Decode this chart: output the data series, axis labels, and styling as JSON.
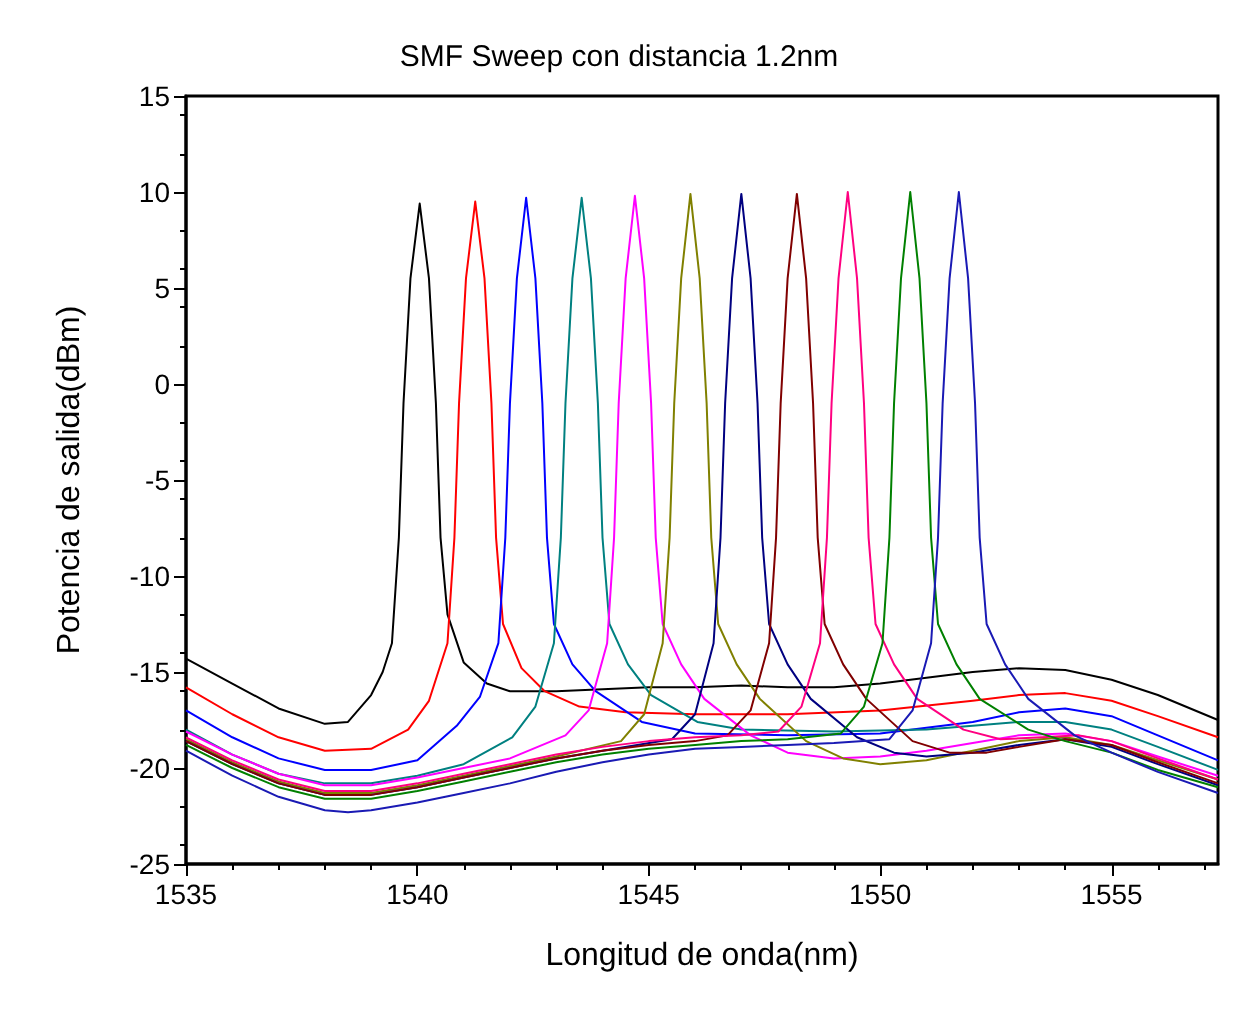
{
  "chart_data": {
    "type": "line",
    "title": "SMF Sweep con distancia 1.2nm",
    "xlabel": "Longitud de onda(nm)",
    "ylabel": "Potencia de salida(dBm)",
    "xlim": [
      1535,
      1557.3
    ],
    "xticks": [
      1535,
      1540,
      1545,
      1550,
      1555
    ],
    "ylim": [
      -25,
      15
    ],
    "yticks": [
      -25,
      -20,
      -15,
      -10,
      -5,
      0,
      5,
      10,
      15
    ],
    "grid": false,
    "marker": "none",
    "line_style": "solid",
    "series": [
      {
        "color": "#000000",
        "x": [
          1535,
          1536,
          1537,
          1538,
          1538.5,
          1539,
          1539.25,
          1539.45,
          1539.6,
          1539.7,
          1539.85,
          1540.05,
          1540.25,
          1540.4,
          1540.5,
          1540.65,
          1541,
          1541.5,
          1542,
          1543,
          1544,
          1545,
          1546,
          1547,
          1548,
          1549,
          1550,
          1551,
          1552,
          1553,
          1554,
          1555,
          1556,
          1557.3
        ],
        "values": [
          -14.3,
          -15.6,
          -16.9,
          -17.7,
          -17.6,
          -16.2,
          -15.0,
          -13.5,
          -8,
          -1,
          5.5,
          9.4,
          5.5,
          -1,
          -8,
          -12,
          -14.5,
          -15.6,
          -16.0,
          -16.0,
          -15.9,
          -15.8,
          -15.8,
          -15.7,
          -15.8,
          -15.8,
          -15.6,
          -15.3,
          -15.0,
          -14.8,
          -14.9,
          -15.4,
          -16.2,
          -17.5
        ]
      },
      {
        "color": "#ff0000",
        "x": [
          1535,
          1536,
          1537,
          1538,
          1539,
          1539.8,
          1540.25,
          1540.65,
          1540.8,
          1540.9,
          1541.05,
          1541.25,
          1541.45,
          1541.6,
          1541.7,
          1541.85,
          1542.25,
          1542.75,
          1543.5,
          1544.5,
          1546,
          1548,
          1550,
          1552,
          1553,
          1554,
          1555,
          1556,
          1557.3
        ],
        "values": [
          -15.8,
          -17.2,
          -18.4,
          -19.1,
          -19.0,
          -18.0,
          -16.5,
          -13.5,
          -8,
          -1,
          5.5,
          9.5,
          5.5,
          -1,
          -8,
          -12.5,
          -14.8,
          -16.0,
          -16.8,
          -17.1,
          -17.2,
          -17.2,
          -17.0,
          -16.5,
          -16.2,
          -16.1,
          -16.5,
          -17.3,
          -18.4
        ]
      },
      {
        "color": "#0000ff",
        "x": [
          1535,
          1536,
          1537,
          1538,
          1539,
          1540,
          1540.85,
          1541.35,
          1541.75,
          1541.9,
          1542,
          1542.15,
          1542.35,
          1542.55,
          1542.7,
          1542.8,
          1542.95,
          1543.35,
          1543.85,
          1544.85,
          1546,
          1548,
          1550,
          1552,
          1553,
          1554,
          1555,
          1556,
          1557.3
        ],
        "values": [
          -17.0,
          -18.4,
          -19.5,
          -20.1,
          -20.1,
          -19.6,
          -17.8,
          -16.3,
          -13.5,
          -8,
          -1,
          5.5,
          9.7,
          5.5,
          -1,
          -8,
          -12.5,
          -14.6,
          -16.0,
          -17.6,
          -18.2,
          -18.3,
          -18.2,
          -17.6,
          -17.1,
          -16.9,
          -17.3,
          -18.3,
          -19.6
        ]
      },
      {
        "color": "#008080",
        "x": [
          1535,
          1536,
          1537,
          1538,
          1539,
          1540,
          1541,
          1542.05,
          1542.55,
          1542.95,
          1543.1,
          1543.2,
          1543.35,
          1543.55,
          1543.75,
          1543.9,
          1544,
          1544.15,
          1544.55,
          1545.05,
          1546.05,
          1547,
          1549,
          1551,
          1552,
          1553,
          1554,
          1555,
          1556,
          1557.3
        ],
        "values": [
          -18.0,
          -19.3,
          -20.3,
          -20.8,
          -20.8,
          -20.4,
          -19.8,
          -18.4,
          -16.8,
          -13.5,
          -8,
          -1,
          5.5,
          9.7,
          5.5,
          -1,
          -8,
          -12.5,
          -14.6,
          -16.2,
          -17.6,
          -18.0,
          -18.1,
          -18.0,
          -17.8,
          -17.6,
          -17.6,
          -18.0,
          -18.9,
          -20.1
        ]
      },
      {
        "color": "#ff00ff",
        "x": [
          1535,
          1536,
          1537,
          1538,
          1539,
          1540,
          1541,
          1542,
          1543.2,
          1543.7,
          1544.1,
          1544.25,
          1544.35,
          1544.5,
          1544.7,
          1544.9,
          1545.05,
          1545.15,
          1545.3,
          1545.7,
          1546.2,
          1547.2,
          1548,
          1549,
          1550,
          1551,
          1552,
          1553,
          1554,
          1555,
          1556,
          1557.3
        ],
        "values": [
          -18.1,
          -19.3,
          -20.3,
          -20.9,
          -20.9,
          -20.5,
          -20.0,
          -19.5,
          -18.3,
          -17.0,
          -13.5,
          -8,
          -1,
          5.5,
          9.8,
          5.5,
          -1,
          -8,
          -12.5,
          -14.6,
          -16.4,
          -18.3,
          -19.2,
          -19.5,
          -19.4,
          -19.1,
          -18.7,
          -18.3,
          -18.2,
          -18.6,
          -19.4,
          -20.4
        ]
      },
      {
        "color": "#808000",
        "x": [
          1535,
          1536,
          1537,
          1538,
          1539,
          1540,
          1541,
          1542,
          1543,
          1544.4,
          1544.9,
          1545.3,
          1545.45,
          1545.55,
          1545.7,
          1545.9,
          1546.1,
          1546.25,
          1546.35,
          1546.5,
          1546.9,
          1547.4,
          1548.4,
          1549.2,
          1550,
          1551,
          1552,
          1553,
          1554,
          1555,
          1556,
          1557.3
        ],
        "values": [
          -18.5,
          -19.7,
          -20.7,
          -21.3,
          -21.3,
          -20.9,
          -20.4,
          -19.9,
          -19.4,
          -18.6,
          -17.2,
          -13.5,
          -8,
          -1,
          5.5,
          9.9,
          5.5,
          -1,
          -8,
          -12.5,
          -14.6,
          -16.4,
          -18.6,
          -19.5,
          -19.8,
          -19.6,
          -19.1,
          -18.6,
          -18.4,
          -18.8,
          -19.6,
          -20.6
        ]
      },
      {
        "color": "#000080",
        "x": [
          1535,
          1536,
          1537,
          1538,
          1539,
          1540,
          1541,
          1542,
          1543,
          1544,
          1545.5,
          1546,
          1546.4,
          1546.55,
          1546.65,
          1546.8,
          1547,
          1547.2,
          1547.35,
          1547.45,
          1547.6,
          1548,
          1548.5,
          1549.5,
          1550.3,
          1551,
          1552,
          1553,
          1554,
          1555,
          1556,
          1557.3
        ],
        "values": [
          -18.6,
          -19.8,
          -20.8,
          -21.4,
          -21.4,
          -21.0,
          -20.5,
          -20.0,
          -19.5,
          -19.1,
          -18.5,
          -17.2,
          -13.5,
          -8,
          -1,
          5.5,
          9.9,
          5.5,
          -1,
          -8,
          -12.5,
          -14.6,
          -16.4,
          -18.4,
          -19.2,
          -19.4,
          -19.2,
          -18.8,
          -18.5,
          -18.9,
          -19.8,
          -20.9
        ]
      },
      {
        "color": "#800000",
        "x": [
          1535,
          1536,
          1537,
          1538,
          1539,
          1540,
          1541,
          1542,
          1543,
          1544,
          1545,
          1546,
          1546.7,
          1547.2,
          1547.6,
          1547.75,
          1547.85,
          1548,
          1548.2,
          1548.4,
          1548.55,
          1548.65,
          1548.8,
          1549.2,
          1549.7,
          1550.7,
          1551.5,
          1552.3,
          1553,
          1554,
          1555,
          1556,
          1557.3
        ],
        "values": [
          -18.6,
          -19.8,
          -20.8,
          -21.4,
          -21.4,
          -21.0,
          -20.5,
          -20.0,
          -19.5,
          -19.1,
          -18.8,
          -18.6,
          -18.3,
          -17.0,
          -13.5,
          -8,
          -1,
          5.5,
          9.9,
          5.5,
          -1,
          -8,
          -12.5,
          -14.6,
          -16.4,
          -18.6,
          -19.2,
          -19.2,
          -18.9,
          -18.5,
          -18.8,
          -19.7,
          -20.8
        ]
      },
      {
        "color": "#ff0080",
        "x": [
          1535,
          1536,
          1537,
          1538,
          1539,
          1540,
          1541,
          1542,
          1543,
          1544,
          1545,
          1546,
          1547,
          1547.8,
          1548.3,
          1548.7,
          1548.85,
          1548.95,
          1549.1,
          1549.3,
          1549.5,
          1549.65,
          1549.75,
          1549.9,
          1550.3,
          1550.8,
          1551.8,
          1552.6,
          1553.5,
          1554.3,
          1555,
          1556,
          1557.3
        ],
        "values": [
          -18.4,
          -19.6,
          -20.6,
          -21.2,
          -21.2,
          -20.8,
          -20.3,
          -19.8,
          -19.3,
          -18.9,
          -18.6,
          -18.4,
          -18.3,
          -18.1,
          -16.8,
          -13.5,
          -8,
          -1,
          5.5,
          10.0,
          5.5,
          -1,
          -8,
          -12.5,
          -14.6,
          -16.4,
          -18.0,
          -18.5,
          -18.4,
          -18.3,
          -18.6,
          -19.5,
          -20.6
        ]
      },
      {
        "color": "#008000",
        "x": [
          1535,
          1536,
          1537,
          1538,
          1539,
          1540,
          1541,
          1542,
          1543,
          1544,
          1545,
          1546,
          1547,
          1548,
          1549.15,
          1549.65,
          1550.05,
          1550.2,
          1550.3,
          1550.45,
          1550.65,
          1550.85,
          1551,
          1551.1,
          1551.25,
          1551.65,
          1552.15,
          1553.2,
          1554,
          1555,
          1556,
          1557.3
        ],
        "values": [
          -18.8,
          -20.0,
          -21.0,
          -21.6,
          -21.6,
          -21.2,
          -20.7,
          -20.2,
          -19.7,
          -19.3,
          -19.0,
          -18.8,
          -18.6,
          -18.5,
          -18.2,
          -16.8,
          -13.5,
          -8,
          -1,
          5.5,
          10.0,
          5.5,
          -1,
          -8,
          -12.5,
          -14.6,
          -16.4,
          -18.0,
          -18.6,
          -19.2,
          -20.1,
          -21.0
        ]
      },
      {
        "color": "#1a1ab4",
        "x": [
          1535,
          1536,
          1537,
          1538,
          1538.5,
          1539,
          1540,
          1541,
          1542,
          1543,
          1544,
          1545,
          1546,
          1547,
          1548,
          1549,
          1550.2,
          1550.7,
          1551.1,
          1551.25,
          1551.35,
          1551.5,
          1551.7,
          1551.9,
          1552.05,
          1552.15,
          1552.3,
          1552.7,
          1553.2,
          1554.2,
          1555,
          1556,
          1557.3
        ],
        "values": [
          -19.1,
          -20.4,
          -21.5,
          -22.2,
          -22.3,
          -22.2,
          -21.8,
          -21.3,
          -20.8,
          -20.2,
          -19.7,
          -19.3,
          -19.0,
          -18.9,
          -18.8,
          -18.7,
          -18.5,
          -17.0,
          -13.5,
          -8,
          -1,
          5.5,
          10.0,
          5.5,
          -1,
          -8,
          -12.5,
          -14.6,
          -16.4,
          -18.3,
          -19.2,
          -20.2,
          -21.3
        ]
      }
    ]
  }
}
